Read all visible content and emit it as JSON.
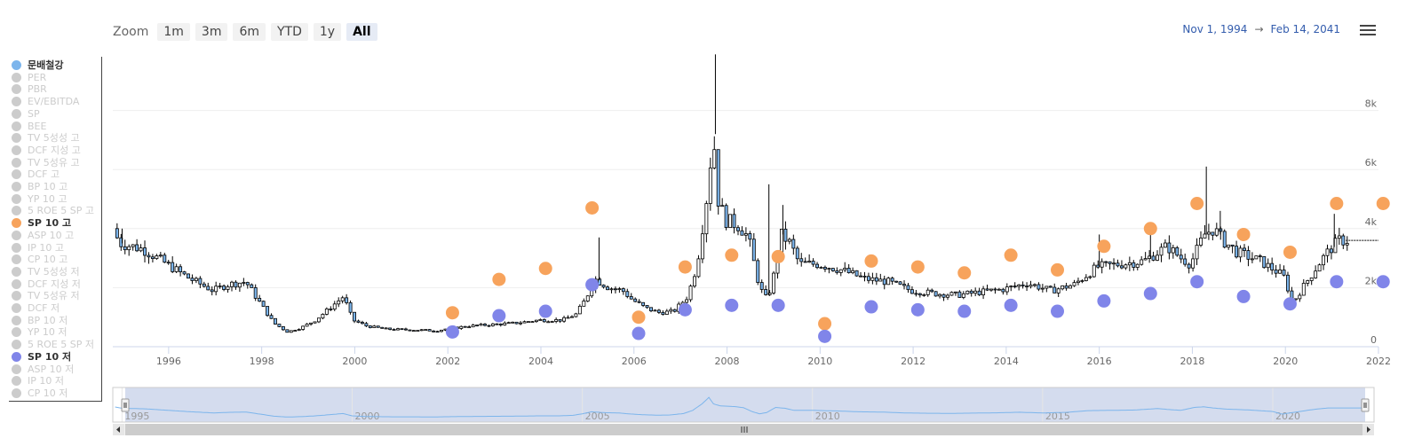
{
  "zoom": {
    "label": "Zoom",
    "buttons": [
      "1m",
      "3m",
      "6m",
      "YTD",
      "1y",
      "All"
    ],
    "active": "All"
  },
  "date_range": {
    "from": "Nov 1, 1994",
    "separator": "→",
    "to": "Feb 14, 2041"
  },
  "menu_icon": "hamburger-icon",
  "legend": [
    {
      "label": "문배철강",
      "color": "#7cb5ec",
      "visible": true
    },
    {
      "label": "PER",
      "color": "#cccccc",
      "visible": false
    },
    {
      "label": "PBR",
      "color": "#cccccc",
      "visible": false
    },
    {
      "label": "EV/EBITDA",
      "color": "#cccccc",
      "visible": false
    },
    {
      "label": "SP",
      "color": "#cccccc",
      "visible": false
    },
    {
      "label": "BEE",
      "color": "#cccccc",
      "visible": false
    },
    {
      "label": "TV 5성성 고",
      "color": "#cccccc",
      "visible": false
    },
    {
      "label": "DCF 지성 고",
      "color": "#cccccc",
      "visible": false
    },
    {
      "label": "TV 5성유 고",
      "color": "#cccccc",
      "visible": false
    },
    {
      "label": "DCF 고",
      "color": "#cccccc",
      "visible": false
    },
    {
      "label": "BP 10 고",
      "color": "#cccccc",
      "visible": false
    },
    {
      "label": "YP 10 고",
      "color": "#cccccc",
      "visible": false
    },
    {
      "label": "5 ROE 5 SP 고",
      "color": "#cccccc",
      "visible": false
    },
    {
      "label": "SP 10 고",
      "color": "#f7a35c",
      "visible": true
    },
    {
      "label": "ASP 10 고",
      "color": "#cccccc",
      "visible": false
    },
    {
      "label": "IP 10 고",
      "color": "#cccccc",
      "visible": false
    },
    {
      "label": "CP 10 고",
      "color": "#cccccc",
      "visible": false
    },
    {
      "label": "TV 5성성 저",
      "color": "#cccccc",
      "visible": false
    },
    {
      "label": "DCF 지성 저",
      "color": "#cccccc",
      "visible": false
    },
    {
      "label": "TV 5성유 저",
      "color": "#cccccc",
      "visible": false
    },
    {
      "label": "DCF 저",
      "color": "#cccccc",
      "visible": false
    },
    {
      "label": "BP 10 저",
      "color": "#cccccc",
      "visible": false
    },
    {
      "label": "YP 10 저",
      "color": "#cccccc",
      "visible": false
    },
    {
      "label": "5 ROE 5 SP 저",
      "color": "#cccccc",
      "visible": false
    },
    {
      "label": "SP 10 저",
      "color": "#8085e9",
      "visible": true
    },
    {
      "label": "ASP 10 저",
      "color": "#cccccc",
      "visible": false
    },
    {
      "label": "IP 10 저",
      "color": "#cccccc",
      "visible": false
    },
    {
      "label": "CP 10 저",
      "color": "#cccccc",
      "visible": false
    }
  ],
  "chart_data": {
    "type": "candlestick",
    "xlim": [
      1994.8,
      2022.0
    ],
    "ylim": [
      0,
      10000
    ],
    "x_ticks": [
      "1996",
      "1998",
      "2000",
      "2002",
      "2004",
      "2006",
      "2008",
      "2010",
      "2012",
      "2014",
      "2016",
      "2018",
      "2020",
      "2022"
    ],
    "y_ticks": [
      "0",
      "2k",
      "4k",
      "6k",
      "8k"
    ],
    "y_tick_values": [
      0,
      2000,
      4000,
      6000,
      8000
    ],
    "grid": true,
    "colors": {
      "up": "#ffffff",
      "down": "#7cb5ec",
      "stroke": "#000000",
      "high": "#f7a35c",
      "low": "#8085e9",
      "navigator_line": "#7cb5ec",
      "navigator_fill": "#ccd6eb"
    },
    "price_path": [
      [
        1994.83,
        4000
      ],
      [
        1995.0,
        3500
      ],
      [
        1995.5,
        3300
      ],
      [
        1996.0,
        2800
      ],
      [
        1996.5,
        2300
      ],
      [
        1997.0,
        1900
      ],
      [
        1997.3,
        2100
      ],
      [
        1997.7,
        2200
      ],
      [
        1998.0,
        1500
      ],
      [
        1998.3,
        800
      ],
      [
        1998.6,
        500
      ],
      [
        1998.9,
        650
      ],
      [
        1999.2,
        900
      ],
      [
        1999.5,
        1300
      ],
      [
        1999.8,
        1700
      ],
      [
        2000.0,
        900
      ],
      [
        2000.3,
        700
      ],
      [
        2000.7,
        600
      ],
      [
        2001.0,
        580
      ],
      [
        2001.5,
        560
      ],
      [
        2001.8,
        540
      ],
      [
        2002.0,
        600
      ],
      [
        2002.5,
        700
      ],
      [
        2003.0,
        750
      ],
      [
        2003.5,
        800
      ],
      [
        2004.0,
        900
      ],
      [
        2004.5,
        900
      ],
      [
        2004.8,
        1100
      ],
      [
        2005.0,
        1600
      ],
      [
        2005.2,
        2300
      ],
      [
        2005.5,
        2000
      ],
      [
        2005.8,
        1900
      ],
      [
        2006.0,
        1600
      ],
      [
        2006.3,
        1300
      ],
      [
        2006.6,
        1150
      ],
      [
        2006.9,
        1200
      ],
      [
        2007.2,
        1700
      ],
      [
        2007.4,
        2800
      ],
      [
        2007.6,
        5000
      ],
      [
        2007.75,
        7200
      ],
      [
        2007.85,
        5000
      ],
      [
        2008.0,
        4300
      ],
      [
        2008.3,
        4100
      ],
      [
        2008.5,
        3700
      ],
      [
        2008.7,
        2300
      ],
      [
        2008.85,
        1600
      ],
      [
        2009.0,
        2000
      ],
      [
        2009.2,
        3800
      ],
      [
        2009.4,
        3500
      ],
      [
        2009.6,
        2800
      ],
      [
        2010.0,
        2800
      ],
      [
        2010.5,
        2600
      ],
      [
        2011.0,
        2300
      ],
      [
        2011.5,
        2200
      ],
      [
        2012.0,
        1900
      ],
      [
        2012.5,
        1800
      ],
      [
        2013.0,
        1750
      ],
      [
        2013.5,
        1850
      ],
      [
        2014.0,
        1950
      ],
      [
        2014.5,
        2150
      ],
      [
        2015.0,
        1900
      ],
      [
        2015.5,
        2100
      ],
      [
        2016.0,
        2700
      ],
      [
        2016.5,
        2800
      ],
      [
        2017.0,
        2900
      ],
      [
        2017.5,
        3400
      ],
      [
        2017.8,
        3000
      ],
      [
        2018.0,
        2800
      ],
      [
        2018.3,
        3800
      ],
      [
        2018.5,
        4000
      ],
      [
        2018.7,
        3600
      ],
      [
        2019.0,
        3200
      ],
      [
        2019.5,
        2900
      ],
      [
        2020.0,
        2400
      ],
      [
        2020.2,
        1500
      ],
      [
        2020.5,
        2200
      ],
      [
        2020.8,
        2900
      ],
      [
        2021.0,
        3300
      ],
      [
        2021.2,
        3600
      ],
      [
        2022.0,
        3600
      ]
    ],
    "spikes": [
      [
        1995.0,
        4000
      ],
      [
        2005.25,
        3700
      ],
      [
        2007.75,
        9900
      ],
      [
        2008.9,
        5500
      ],
      [
        2009.2,
        4800
      ],
      [
        2016.0,
        3800
      ],
      [
        2017.1,
        4000
      ],
      [
        2018.3,
        6100
      ],
      [
        2018.6,
        4600
      ],
      [
        2021.05,
        4500
      ]
    ],
    "series": [
      {
        "name": "SP 10 고",
        "x": [
          2002.1,
          2003.1,
          2004.1,
          2005.1,
          2006.1,
          2007.1,
          2008.1,
          2009.1,
          2010.1,
          2011.1,
          2012.1,
          2013.1,
          2014.1,
          2015.1,
          2016.1,
          2017.1,
          2018.1,
          2019.1,
          2020.1,
          2021.1,
          2022.1
        ],
        "y": [
          1150,
          2280,
          2650,
          4700,
          1000,
          2700,
          3100,
          3050,
          780,
          2900,
          2700,
          2500,
          3100,
          2600,
          3400,
          4000,
          4850,
          3800,
          3200,
          4850,
          4850
        ]
      },
      {
        "name": "SP 10 저",
        "x": [
          2002.1,
          2003.1,
          2004.1,
          2005.1,
          2006.1,
          2007.1,
          2008.1,
          2009.1,
          2010.1,
          2011.1,
          2012.1,
          2013.1,
          2014.1,
          2015.1,
          2016.1,
          2017.1,
          2018.1,
          2019.1,
          2020.1,
          2021.1,
          2022.1
        ],
        "y": [
          500,
          1050,
          1200,
          2100,
          450,
          1250,
          1400,
          1400,
          350,
          1350,
          1250,
          1200,
          1400,
          1200,
          1550,
          1800,
          2200,
          1700,
          1450,
          2200,
          2200
        ]
      }
    ],
    "navigator": {
      "x_labels": [
        "1995",
        "2000",
        "2005",
        "2010",
        "2015",
        "2020"
      ],
      "x_values": [
        1995,
        2000,
        2005,
        2010,
        2015,
        2020
      ],
      "xlim": [
        1994.8,
        2022.2
      ]
    }
  }
}
